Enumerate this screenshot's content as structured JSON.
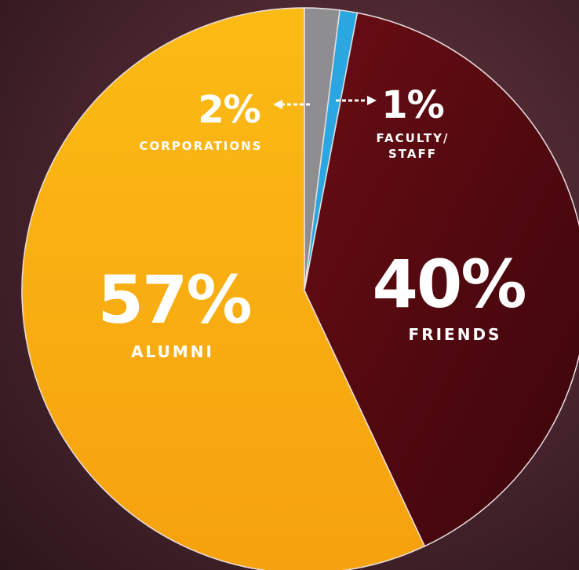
{
  "chart_data": {
    "type": "pie",
    "categories": [
      "CORPORATIONS",
      "FACULTY/ STAFF",
      "FRIENDS",
      "ALUMNI"
    ],
    "values": [
      2,
      1,
      40,
      57
    ],
    "value_labels": [
      "2%",
      "1%",
      "40%",
      "57%"
    ],
    "colors": [
      "#8e8e90",
      "#2aa6e0",
      "#5c0b12",
      "#f8ae12"
    ]
  }
}
